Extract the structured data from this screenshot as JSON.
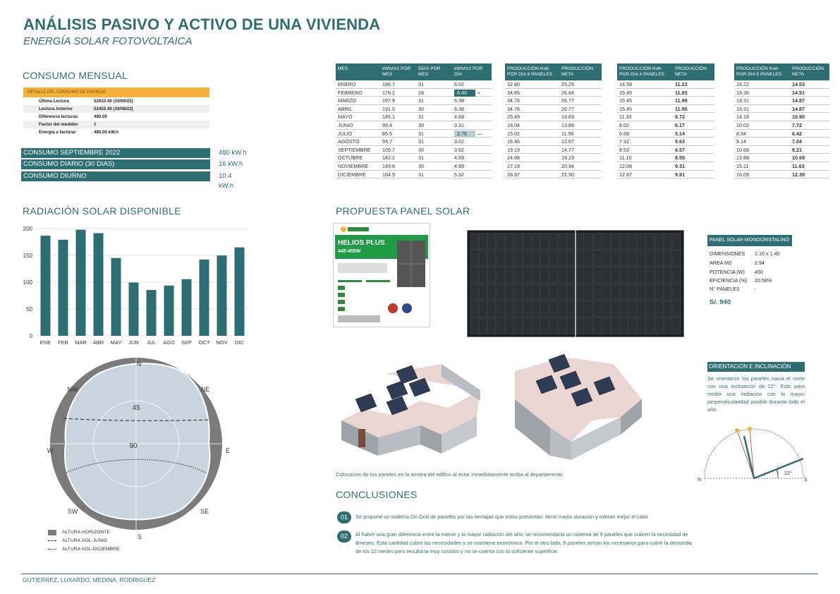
{
  "header": {
    "title": "ANÁLISIS PASIVO Y ACTIVO DE UNA VIVIENDA",
    "subtitle": "ENERGÍA SOLAR FOTOVOLTAICA"
  },
  "consumo": {
    "section_title": "CONSUMO MENSUAL",
    "detail_header": "DETALLE DEL CONSUMO DE ENERGÍA",
    "detail_rows": [
      {
        "label": "Última Lectura",
        "value": "52933.40 (19/09/22)"
      },
      {
        "label": "Lectura Anterior",
        "value": "52453.40 (19/08/22)"
      },
      {
        "label": "Diferencia lecturas",
        "value": "480.00"
      },
      {
        "label": "Factor del medidor",
        "value": "1"
      },
      {
        "label": "Energía a facturar",
        "value": "480.00 kW.h"
      }
    ],
    "kpis": [
      {
        "label": "CONSUMO SEPTIEMBRE 2022",
        "value": "480 kW.h"
      },
      {
        "label": "CONSUMO DIARIO (30 DIAS)",
        "value": "16 kW.h"
      },
      {
        "label": "CONSUMO DIURNO",
        "value": "10.4 kW.h"
      }
    ]
  },
  "monthly_table": {
    "headers": [
      "MES",
      "kWh/m2 POR MES",
      "DÍAS POR MES",
      "kWh/m2 POR DÍA",
      "PRODUCCIÓN Kwh POR DIA 9 PANELES",
      "PRODUCCIÓN NETA",
      "PRODUCCIÓN Kwh POR DIA 4 PANELES",
      "PRODUCCIÓN NETA",
      "PRODUCCIÓN Kwh POR DIA 5 PANELES",
      "PRODUCCIÓN NETA"
    ],
    "rows": [
      [
        "ENERO",
        "186.7",
        "31",
        "6.02",
        "32.80",
        "25.25",
        "14.58",
        "11.23",
        "18.22",
        "14.03"
      ],
      [
        "FEBRERO",
        "179.2",
        "28",
        "6.40",
        "34.85",
        "26.84",
        "15.49",
        "11.93",
        "19.36",
        "14.91"
      ],
      [
        "MARZO",
        "197.9",
        "31",
        "6.38",
        "34.76",
        "26.77",
        "15.45",
        "11.90",
        "19.31",
        "14.87"
      ],
      [
        "ABRIL",
        "191.5",
        "30",
        "6.38",
        "34.76",
        "26.77",
        "15.45",
        "11.90",
        "19.31",
        "14.87"
      ],
      [
        "MAYO",
        "145.1",
        "31",
        "4.68",
        "25.49",
        "19.63",
        "11.33",
        "8.72",
        "14.16",
        "10.90"
      ],
      [
        "JUNIO",
        "99.4",
        "30",
        "3.31",
        "18.04",
        "13.89",
        "8.02",
        "6.17",
        "10.02",
        "7.72"
      ],
      [
        "JULIO",
        "85.5",
        "31",
        "2.76",
        "15.02",
        "11.56",
        "6.68",
        "5.14",
        "8.34",
        "6.42"
      ],
      [
        "AGOSTO",
        "93.7",
        "31",
        "3.02",
        "16.46",
        "12.67",
        "7.32",
        "5.63",
        "9.14",
        "7.04"
      ],
      [
        "SEPTIEMBRE",
        "105.7",
        "30",
        "3.52",
        "19.19",
        "14.77",
        "8.53",
        "6.57",
        "10.66",
        "8.21"
      ],
      [
        "OCTUBRE",
        "142.2",
        "31",
        "4.59",
        "24.98",
        "19.23",
        "11.10",
        "8.55",
        "13.88",
        "10.69"
      ],
      [
        "NOVIEMBRE",
        "149.8",
        "30",
        "4.99",
        "27.19",
        "20.94",
        "12.08",
        "9.31",
        "15.11",
        "11.63"
      ],
      [
        "DICIEMBRE",
        "164.9",
        "31",
        "5.32",
        "28.97",
        "22.30",
        "12.87",
        "9.91",
        "16.09",
        "12.39"
      ]
    ],
    "max_marker": "+",
    "min_marker": "—"
  },
  "radiation": {
    "section_title": "RADIACIÓN SOLAR DISPONIBLE"
  },
  "chart_data": {
    "type": "bar",
    "categories": [
      "ENE",
      "FEB",
      "MAR",
      "ABR",
      "MAY",
      "JUN",
      "JUL",
      "AGO",
      "SEP",
      "OCT",
      "NOV",
      "DIC"
    ],
    "values": [
      186.7,
      179.2,
      197.9,
      191.5,
      145.1,
      99.4,
      85.5,
      93.7,
      105.7,
      142.2,
      149.8,
      164.9
    ],
    "yticks": [
      "0",
      "50",
      "100",
      "150",
      "200"
    ],
    "ylim": [
      0,
      200
    ],
    "title": "",
    "xlabel": "",
    "ylabel": "",
    "grid": true,
    "bar_color": "#2d6e73"
  },
  "sun_path": {
    "directions": {
      "n": "N",
      "ne": "NE",
      "e": "E",
      "se": "SE",
      "s": "S",
      "sw": "SW",
      "w": "W",
      "nw": "NW"
    },
    "rings": [
      "45",
      "90"
    ],
    "legend": [
      {
        "label": "ALTURA HORIZONTE"
      },
      {
        "label": "ALTURA SOL-JUNIO"
      },
      {
        "label": "ALTURA SOL-DICIEMBRE"
      }
    ]
  },
  "panel": {
    "section_title": "PROPUESTA PANEL SOLAR",
    "datasheet_title": "HELIOS PLUS",
    "datasheet_sub": "445-455W",
    "spec_title": "PANEL SOLAR MONOCRISTALINO",
    "specs": [
      {
        "k": "DIMENSIONES",
        "v": "2.10 x 1.40"
      },
      {
        "k": "AREA M2",
        "v": "2.94"
      },
      {
        "k": "POTENCIA (W)",
        "v": "450"
      },
      {
        "k": "EFICIENCIA (%)",
        "v": "20.58%"
      },
      {
        "k": "N° PANELES",
        "v": "-"
      }
    ],
    "price": "S/. 940"
  },
  "orientation": {
    "title": "ORIENTACIÓN E INCLINACIÓN",
    "text": "Se orientaron los paneles hacia el norte con una inclinación de 22°. Esto para recibir una radiación con la mayor perpendicularidad posible durante todo el año.",
    "angle_label": "22°",
    "n_label": "N",
    "s_label": "S"
  },
  "caption": "Colocación de los paneles en la azotea del edifico al estar inmediatamente arriba al departamento",
  "conclusions": {
    "title": "CONCLUSIONES",
    "items": [
      {
        "num": "01",
        "text": "Se propone un sistema On Grid de paneles por las ventajas que estos presentan: tiene mayor duración y toleran mejor el calor"
      },
      {
        "num": "02",
        "text": "Al haber una gran diferencia entre la menor y la mayor radiación del año, se recomendaría un sistema de 5 paneles que cubren la necesidad de 8meses. Esta cantidad cubre las necesidades y se mantiene económica. Por el otro lado, 9 paneles serían los necesarios para cubrir la demanda de los 12 meses pero resultaría muy costoso y no se cuenta con la suficiente superficie."
      }
    ]
  },
  "footer": "GUTIERREZ, LUXARDO, MEDINA, RODRIGUEZ",
  "colors": {
    "accent": "#2d6e73",
    "highlight": "#f6b13a"
  }
}
